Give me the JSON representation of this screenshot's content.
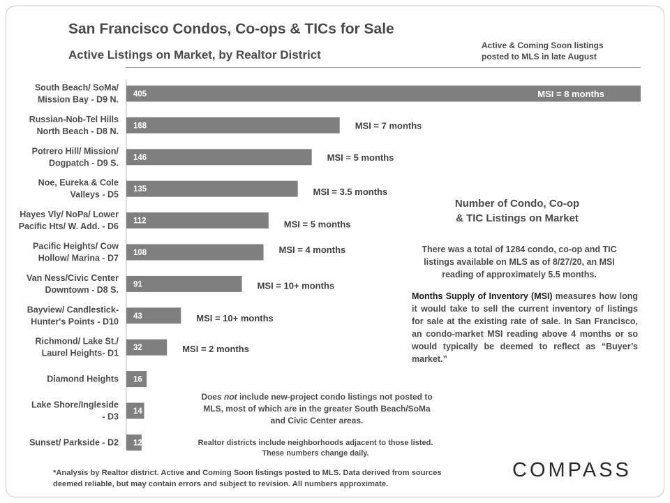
{
  "header": {
    "title": "San Francisco Condos, Co-ops & TICs for Sale",
    "subtitle": "Active Listings on Market, by Realtor District",
    "top_note": [
      "Active & Coming Soon listings",
      "posted to MLS in late August"
    ]
  },
  "chart_data": {
    "type": "bar",
    "orientation": "horizontal",
    "title": "Active Listings on Market, by Realtor District",
    "xlim": [
      0,
      405
    ],
    "bar_color": "#7f7f7f",
    "categories": [
      [
        "South Beach/ SoMa/",
        "Mission Bay - D9 N."
      ],
      [
        "Russian-Nob-Tel Hills",
        "North Beach - D8 N."
      ],
      [
        "Potrero Hill/ Mission/",
        "Dogpatch - D9 S."
      ],
      [
        "Noe, Eureka & Cole",
        "Valleys - D5"
      ],
      [
        "Hayes Vly/ NoPa/ Lower",
        "Pacific Hts/ W. Add. - D6"
      ],
      [
        "Pacific Heights/ Cow",
        "Hollow/ Marina - D7"
      ],
      [
        "Van Ness/Civic Center",
        "Downtown - D8 S."
      ],
      [
        "Bayview/ Candlestick-",
        "Hunter's Points - D10"
      ],
      [
        "Richmond/ Lake St./",
        "Laurel Heights- D1"
      ],
      [
        "Diamond Heights"
      ],
      [
        "Lake Shore/Ingleside",
        "- D3"
      ],
      [
        "Sunset/ Parkside - D2"
      ]
    ],
    "values": [
      405,
      168,
      146,
      135,
      112,
      108,
      91,
      43,
      32,
      16,
      14,
      12
    ],
    "annotations": [
      "MSI = 8 months",
      "MSI = 7 months",
      "MSI = 5 months",
      "MSI = 3.5 months",
      "MSI = 5 months",
      "MSI = 4 months",
      "MSI = 10+ months",
      "MSI = 10+ months",
      "MSI = 2 months",
      "",
      "",
      ""
    ]
  },
  "panel": {
    "title_line1": "Number of Condo, Co-op",
    "title_line2": "& TIC Listings on Market",
    "summary": "There was a total of 1284 condo, co-op and TIC listings available on MLS as of 8/27/20, an MSI reading of approximately 5.5 months.",
    "msi_lead": "Months Supply of Inventory (MSI)",
    "msi_text": " measures how long it would take to sell the current inventory of listings for sale at the existing rate of sale. In San Francisco, an condo-market MSI reading above 4 months or so would typically be deemed to reflect as “Buyer’s market.”"
  },
  "notes": {
    "mid_pre": "Does ",
    "mid_em": "not",
    "mid_post": " include new-project condo listings not posted to MLS, most of which are in the greater South Beach/SoMa and Civic Center areas.",
    "bottom": "Realtor districts include neighborhoods adjacent to those listed. These numbers change daily."
  },
  "footnote": "*Analysis by Realtor district. Active and Coming Soon listings posted to MLS. Data derived from sources deemed reliable, but may contain errors and subject to revision. All numbers approximate.",
  "logo": "COMPASS"
}
